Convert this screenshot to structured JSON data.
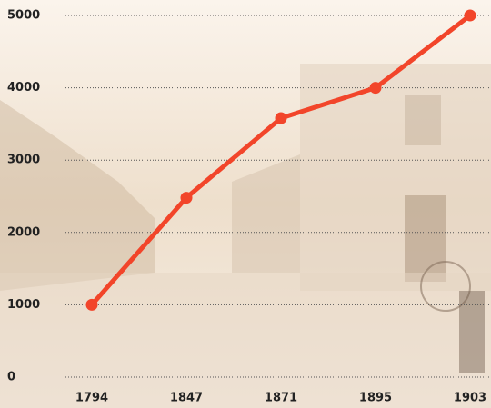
{
  "chart_data": {
    "type": "line",
    "categories": [
      "1794",
      "1847",
      "1871",
      "1895",
      "1903"
    ],
    "values": [
      1000,
      2480,
      3580,
      4000,
      5000
    ],
    "color": "#f2452a",
    "ylim": [
      0,
      5000
    ],
    "yticks": [
      0,
      1000,
      2000,
      3000,
      4000,
      5000
    ],
    "grid": true
  }
}
